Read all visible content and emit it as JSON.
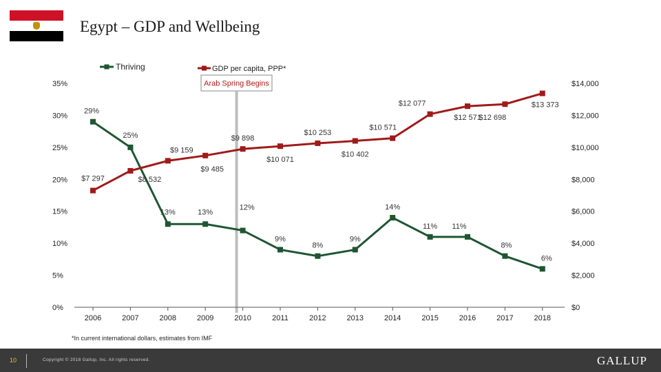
{
  "page": {
    "title": "Egypt – GDP and Wellbeing",
    "footnote": "*In current international dollars, estimates from IMF"
  },
  "flag": {
    "colors": [
      "#ce1126",
      "#ffffff",
      "#000000"
    ],
    "emblem_color": "#c09300",
    "emblem": "eagle-icon"
  },
  "footer": {
    "page_number": "10",
    "copyright": "Copyright © 2018 Gallup, Inc. All rights reserved.",
    "brand": "GALLUP"
  },
  "chart_data": {
    "type": "line",
    "x": [
      "2006",
      "2007",
      "2008",
      "2009",
      "2010",
      "2011",
      "2012",
      "2013",
      "2014",
      "2015",
      "2016",
      "2017",
      "2018"
    ],
    "series": [
      {
        "name": "Thriving",
        "axis": "left",
        "color": "#1e5631",
        "values": [
          29,
          25,
          13,
          13,
          12,
          9,
          8,
          9,
          14,
          11,
          11,
          8,
          6
        ],
        "labels": [
          "29%",
          "25%",
          "13%",
          "13%",
          "12%",
          "9%",
          "8%",
          "9%",
          "14%",
          "11%",
          "11%",
          "8%",
          "6%"
        ]
      },
      {
        "name": "GDP per capita, PPP*",
        "axis": "right",
        "color": "#a01a1a",
        "values": [
          7297,
          8532,
          9159,
          9485,
          9898,
          10071,
          10253,
          10402,
          10571,
          12077,
          12571,
          12698,
          13373
        ],
        "labels": [
          "$7 297",
          "$8 532",
          "$9 159",
          "$9 485",
          "$9 898",
          "$10 071",
          "$10 253",
          "$10 402",
          "$10 571",
          "$12 077",
          "$12 571",
          "$12 698",
          "$13 373"
        ]
      }
    ],
    "y_left": {
      "lim": [
        0,
        35
      ],
      "ticks": [
        "0%",
        "5%",
        "10%",
        "15%",
        "20%",
        "25%",
        "30%",
        "35%"
      ]
    },
    "y_right": {
      "lim": [
        0,
        14000
      ],
      "ticks": [
        "$0",
        "$2,000",
        "$4,000",
        "$6,000",
        "$8,000",
        "$10,000",
        "$12,000",
        "$14,000"
      ]
    },
    "annotation": {
      "text": "Arab Spring Begins",
      "at_x": "2010"
    },
    "legend": "top",
    "grid": false
  }
}
